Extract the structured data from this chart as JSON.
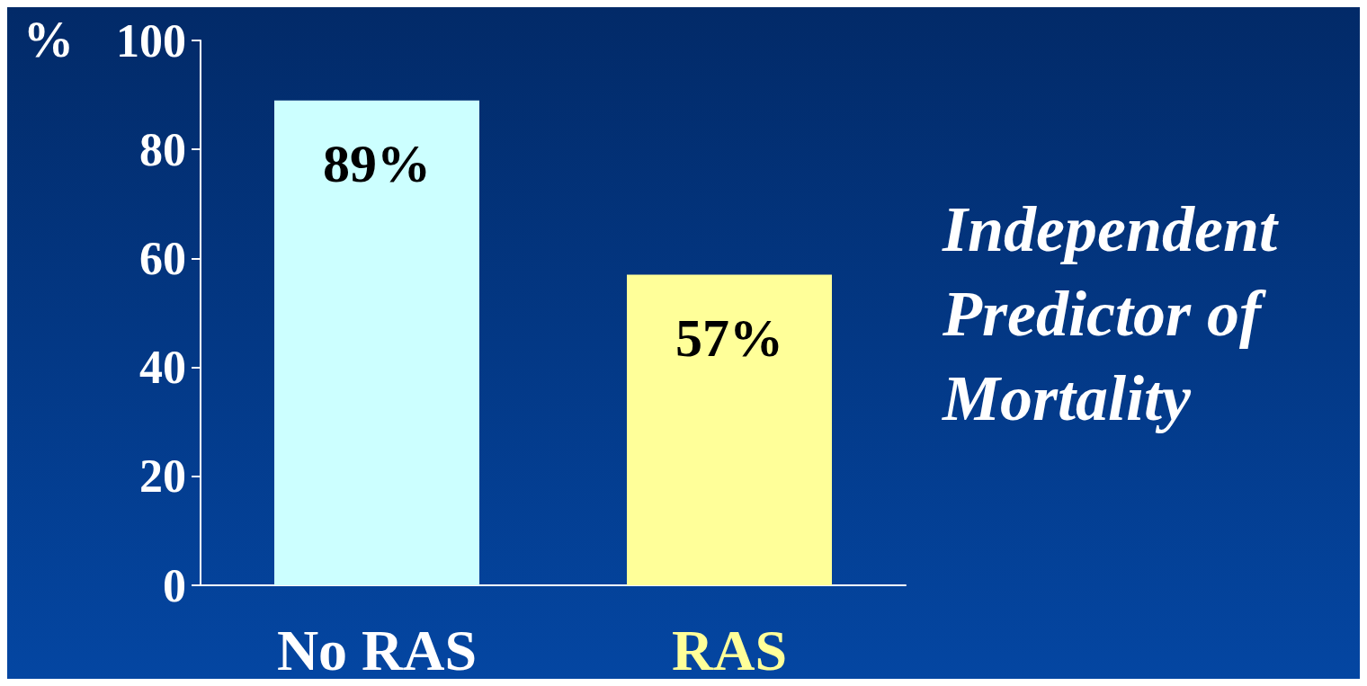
{
  "chart_data": {
    "type": "bar",
    "ylabel": "%",
    "categories": [
      "No RAS",
      "RAS"
    ],
    "values": [
      89,
      57
    ],
    "colors": [
      "#ccffff",
      "#ffff99"
    ],
    "value_labels": [
      "89%",
      "57%"
    ],
    "ylim": [
      0,
      100
    ],
    "yticks": [
      0,
      20,
      40,
      60,
      80,
      100
    ],
    "grid": false,
    "annotations": [
      "Independent\nPredictor of\nMortality"
    ]
  }
}
